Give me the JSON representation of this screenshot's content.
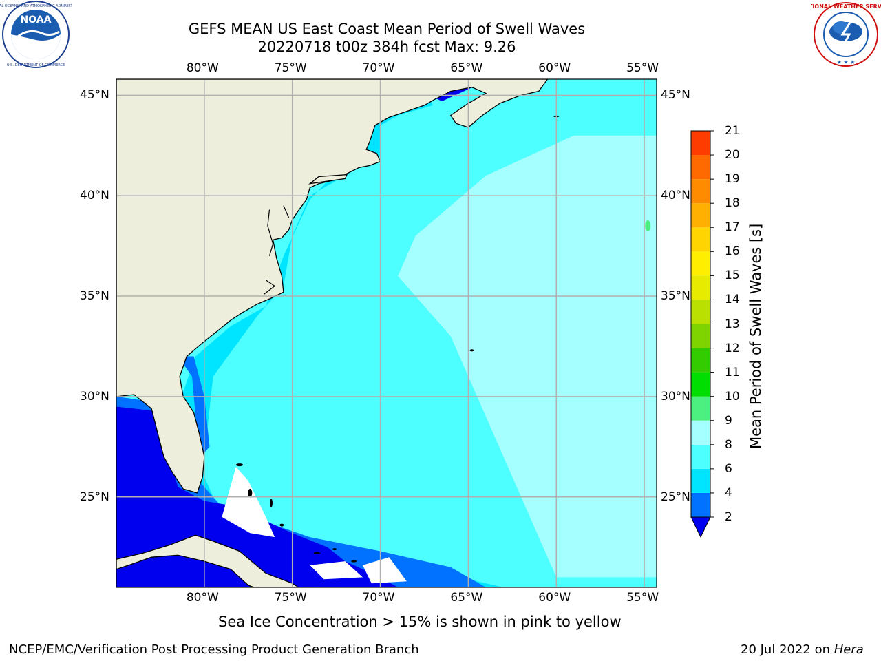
{
  "header": {
    "title_line1": "GEFS MEAN US East Coast Mean Period of Swell Waves",
    "title_line2": "20220718 t00z 384h fcst   Max: 9.26"
  },
  "logos": {
    "left": "noaa-logo",
    "right": "national-weather-service-logo",
    "noaa_text": "NOAA",
    "noaa_ring_text": "NATIONAL OCEANIC AND ATMOSPHERIC ADMINISTRATION",
    "noaa_ring_text_bottom": "U.S. DEPARTMENT OF COMMERCE",
    "nws_ring_text": "NATIONAL WEATHER SERVICE"
  },
  "map": {
    "lon_labels_top": [
      "80°W",
      "75°W",
      "70°W",
      "65°W",
      "60°W",
      "55°W"
    ],
    "lon_labels_bottom": [
      "80°W",
      "75°W",
      "70°W",
      "65°W",
      "60°W",
      "55°W"
    ],
    "lat_labels_left": [
      "45°N",
      "40°N",
      "35°N",
      "30°N",
      "25°N"
    ],
    "lat_labels_right": [
      "45°N",
      "40°N",
      "35°N",
      "30°N",
      "25°N"
    ],
    "lon_range": [
      -85,
      -54.3
    ],
    "lat_range": [
      20.5,
      45.8
    ],
    "colors": {
      "land": "#eeeedd",
      "grid": "#b0b0b0",
      "coast": "#000000"
    }
  },
  "colorbar": {
    "title": "Mean Period of Swell Waves [s]",
    "tick_labels": [
      "2",
      "4",
      "6",
      "8",
      "9",
      "10",
      "11",
      "12",
      "13",
      "14",
      "15",
      "16",
      "17",
      "18",
      "19",
      "20",
      "21"
    ],
    "levels": [
      2,
      4,
      6,
      8,
      9,
      10,
      11,
      12,
      13,
      14,
      15,
      16,
      17,
      18,
      19,
      20,
      21
    ],
    "colors": [
      "#0072ff",
      "#00e5ff",
      "#4dffff",
      "#a5ffff",
      "#4cf080",
      "#00dd00",
      "#33cc00",
      "#7fd400",
      "#b9e000",
      "#e6eb00",
      "#ffee00",
      "#ffd400",
      "#ffb000",
      "#ff8c00",
      "#ff6a00",
      "#ff3c00",
      "#ff0000"
    ],
    "under_color": "#0000ee"
  },
  "footer": {
    "sea_ice_note": "Sea Ice Concentration > 15% is shown in pink to yellow",
    "credit": "NCEP/EMC/Verification Post Processing Product Generation Branch",
    "date": "20 Jul 2022 on ",
    "host": "Hera"
  }
}
